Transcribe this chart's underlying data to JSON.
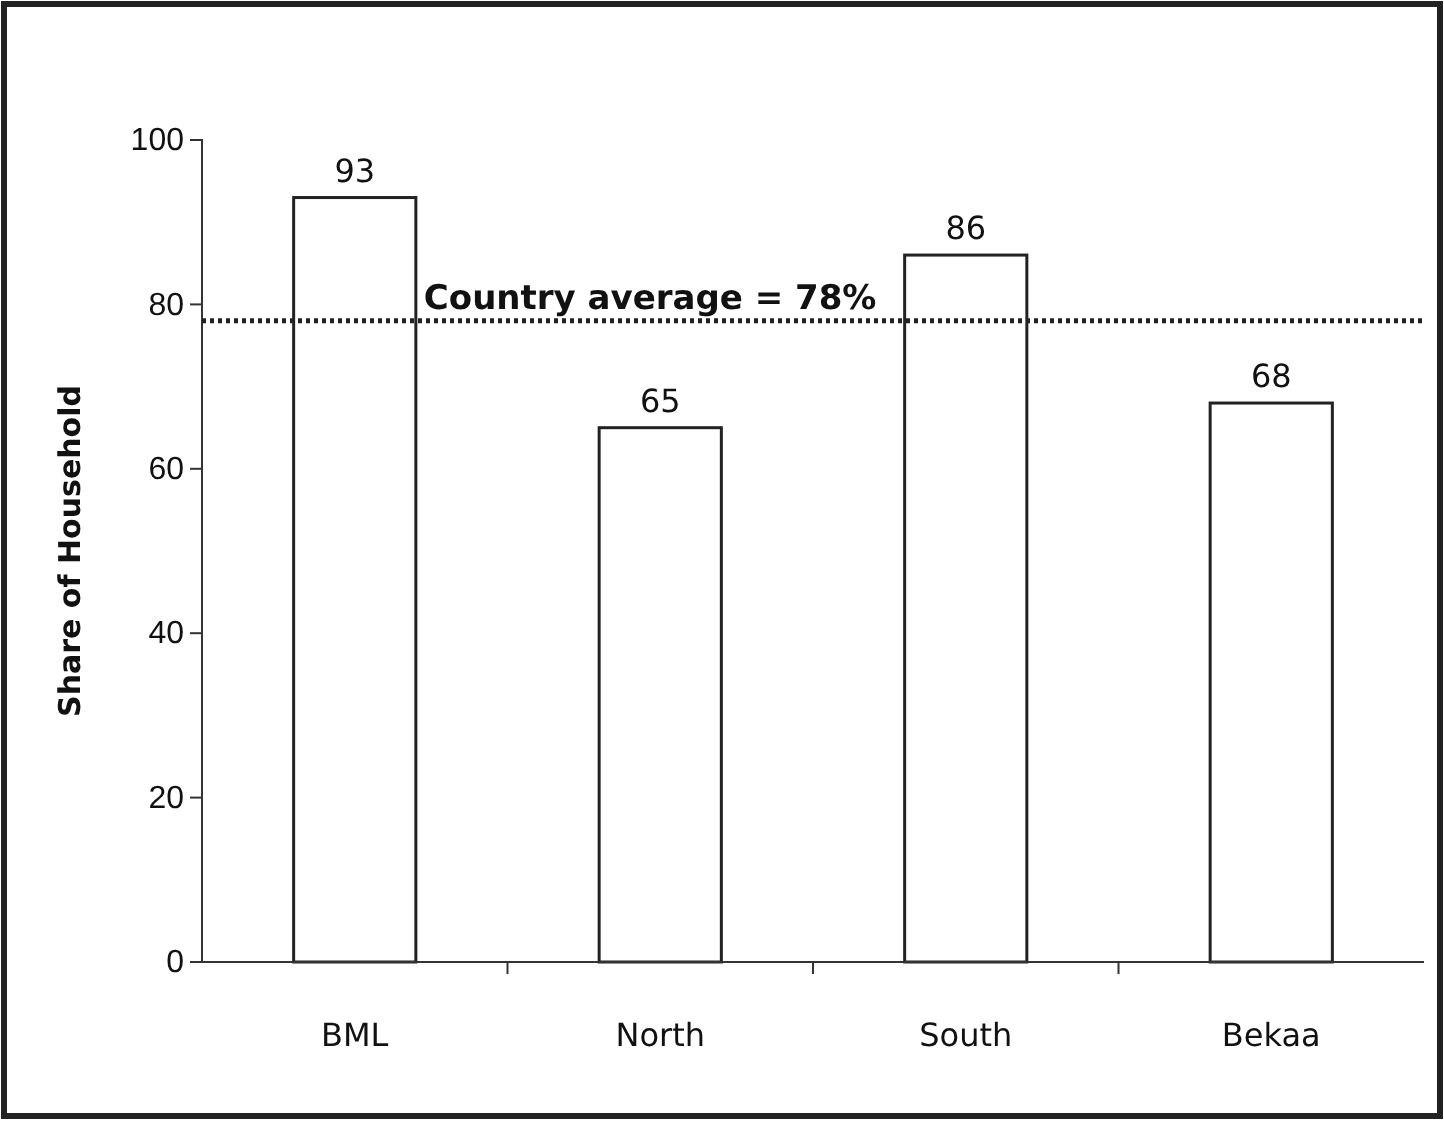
{
  "chart_data": {
    "type": "bar",
    "ylabel": "Share of Household",
    "categories": [
      "BML",
      "North",
      "South",
      "Bekaa"
    ],
    "values": [
      93,
      65,
      86,
      68
    ],
    "color": "#ffffff",
    "data_labels": true,
    "ylim": [
      0,
      100
    ],
    "yticks": [
      0,
      20,
      40,
      60,
      80,
      100
    ],
    "grid": false,
    "ref_lines": [
      {
        "axis": "y",
        "value": 78,
        "label": "Country average = 78%",
        "line_style": "dotted",
        "color": "#222222"
      }
    ]
  }
}
